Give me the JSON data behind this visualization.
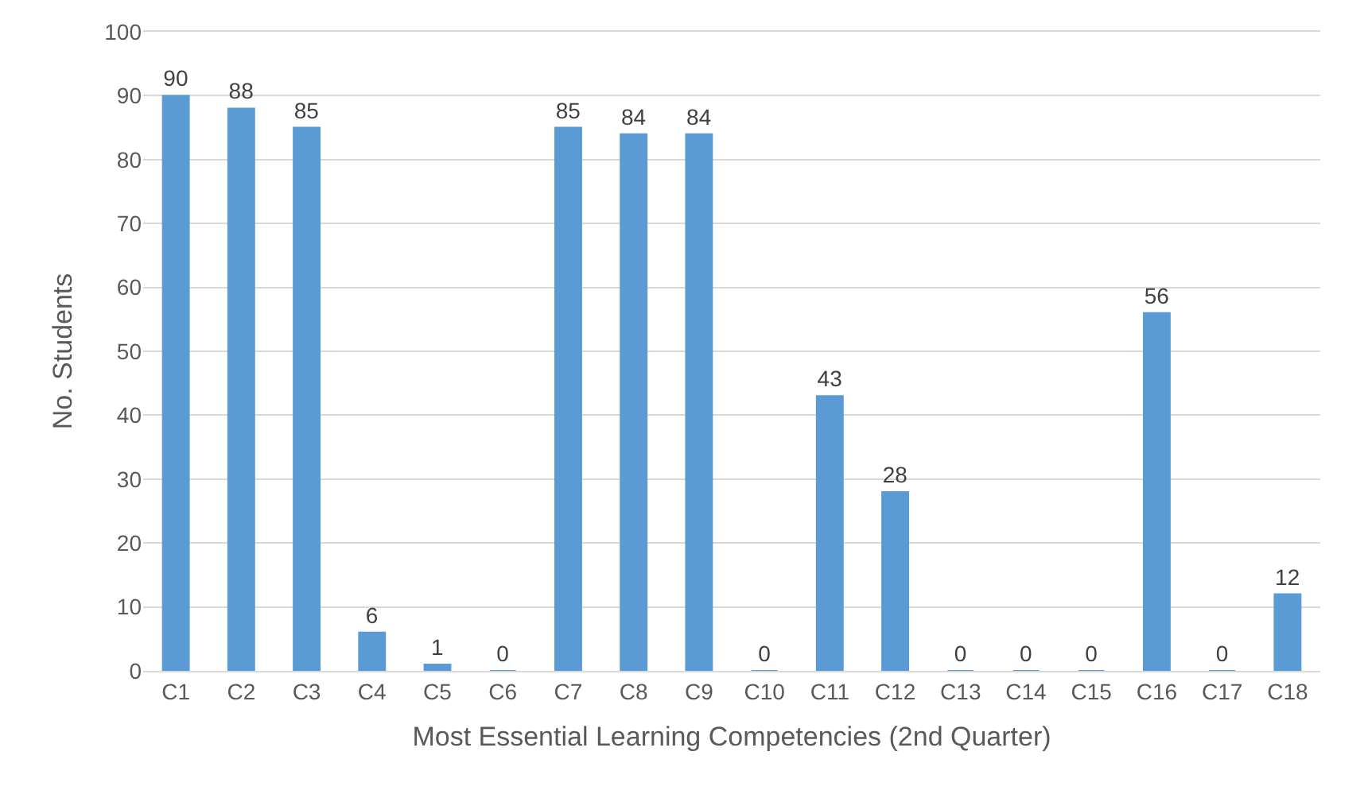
{
  "chart_data": {
    "type": "bar",
    "categories": [
      "C1",
      "C2",
      "C3",
      "C4",
      "C5",
      "C6",
      "C7",
      "C8",
      "C9",
      "C10",
      "C11",
      "C12",
      "C13",
      "C14",
      "C15",
      "C16",
      "C17",
      "C18"
    ],
    "values": [
      90,
      88,
      85,
      6,
      1,
      0,
      85,
      84,
      84,
      0,
      43,
      28,
      0,
      0,
      0,
      56,
      0,
      12
    ],
    "color": "#5b9bd5",
    "xlabel": "Most Essential Learning Competencies (2nd Quarter)",
    "ylabel": "No. Students",
    "ylim": [
      0,
      100
    ],
    "yticks": [
      0,
      10,
      20,
      30,
      40,
      50,
      60,
      70,
      80,
      90,
      100
    ],
    "grid": "y",
    "data_labels": true
  }
}
